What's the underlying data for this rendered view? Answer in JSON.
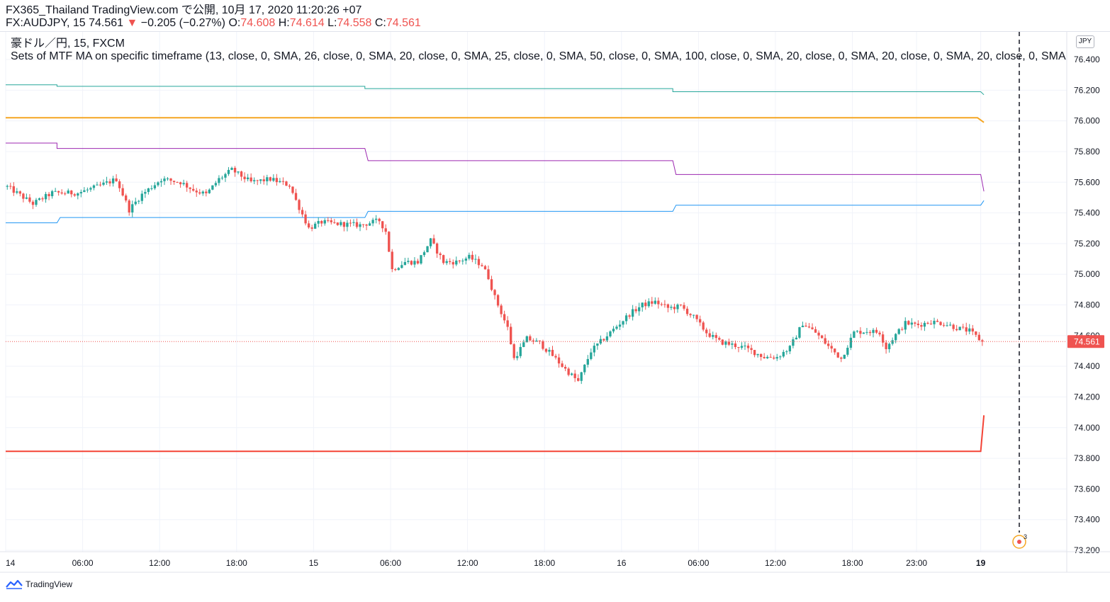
{
  "header": {
    "publisher_line": "FX365_Thailand TradingView.com で公開, 10月 17, 2020 11:20:26 +07",
    "symbol_line": {
      "symbol": "FX:AUDJPY, 15 74.561",
      "arrow": "▼",
      "change": "−0.205 (−0.27%)",
      "o_label": "O:",
      "o_value": "74.608",
      "h_label": "H:",
      "h_value": "74.614",
      "l_label": "L:",
      "l_value": "74.558",
      "c_label": "C:",
      "c_value": "74.561"
    },
    "instrument_line": "豪ドル／円, 15, FXCM",
    "indicator_line": "Sets of MTF MA on specific timeframe (13, close, 0, SMA, 26, close, 0, SMA, 20, close, 0, SMA, 25, close, 0, SMA, 50, close, 0, SMA, 100, close, 0, SMA, 20, close, 0, SMA, 20, close, 0, SMA, 20, close, 0, SMA"
  },
  "currency_badge": "JPY",
  "last_price_label": "74.561",
  "event_count": "3",
  "footer": {
    "brand": "TradingView"
  },
  "colors": {
    "up": "#26a69a",
    "down": "#ef5350",
    "ma_teal": "#26a69a",
    "ma_orange": "#f5a623",
    "ma_purple": "#9c27b0",
    "ma_pink": "#e91e63",
    "ma_blue": "#2196f3",
    "ma_red": "#f44336"
  },
  "chart_data": {
    "type": "candlestick",
    "y_axis": {
      "ticks": [
        "76.400",
        "76.200",
        "76.000",
        "75.800",
        "75.600",
        "75.400",
        "75.200",
        "75.000",
        "74.800",
        "74.600",
        "74.400",
        "74.200",
        "74.000",
        "73.800",
        "73.600",
        "73.400",
        "73.200"
      ],
      "ylim": [
        73.2,
        76.4
      ]
    },
    "x_axis": {
      "ticks": [
        {
          "label": "14",
          "bold": false,
          "bar": 0
        },
        {
          "label": "06:00",
          "bold": false,
          "bar": 24
        },
        {
          "label": "12:00",
          "bold": false,
          "bar": 48
        },
        {
          "label": "18:00",
          "bold": false,
          "bar": 72
        },
        {
          "label": "15",
          "bold": false,
          "bar": 96
        },
        {
          "label": "06:00",
          "bold": false,
          "bar": 120
        },
        {
          "label": "12:00",
          "bold": false,
          "bar": 144
        },
        {
          "label": "18:00",
          "bold": false,
          "bar": 168
        },
        {
          "label": "16",
          "bold": false,
          "bar": 192
        },
        {
          "label": "06:00",
          "bold": false,
          "bar": 216
        },
        {
          "label": "12:00",
          "bold": false,
          "bar": 240
        },
        {
          "label": "18:00",
          "bold": false,
          "bar": 264
        },
        {
          "label": "23:00",
          "bold": false,
          "bar": 284
        },
        {
          "label": "19",
          "bold": true,
          "bar": 304
        }
      ]
    },
    "price_path": [
      [
        0,
        75.57
      ],
      [
        8,
        75.46
      ],
      [
        14,
        75.53
      ],
      [
        22,
        75.53
      ],
      [
        28,
        75.57
      ],
      [
        34,
        75.62
      ],
      [
        38,
        75.42
      ],
      [
        42,
        75.52
      ],
      [
        48,
        75.62
      ],
      [
        54,
        75.6
      ],
      [
        58,
        75.55
      ],
      [
        62,
        75.52
      ],
      [
        66,
        75.62
      ],
      [
        70,
        75.68
      ],
      [
        76,
        75.6
      ],
      [
        82,
        75.62
      ],
      [
        88,
        75.58
      ],
      [
        90,
        75.48
      ],
      [
        94,
        75.3
      ],
      [
        98,
        75.34
      ],
      [
        102,
        75.33
      ],
      [
        110,
        75.32
      ],
      [
        116,
        75.35
      ],
      [
        118,
        75.28
      ],
      [
        120,
        75.03
      ],
      [
        124,
        75.08
      ],
      [
        128,
        75.08
      ],
      [
        132,
        75.22
      ],
      [
        136,
        75.08
      ],
      [
        140,
        75.08
      ],
      [
        144,
        75.11
      ],
      [
        148,
        75.06
      ],
      [
        150,
        74.98
      ],
      [
        152,
        74.85
      ],
      [
        156,
        74.65
      ],
      [
        158,
        74.45
      ],
      [
        162,
        74.58
      ],
      [
        166,
        74.55
      ],
      [
        170,
        74.47
      ],
      [
        174,
        74.38
      ],
      [
        178,
        74.3
      ],
      [
        182,
        74.5
      ],
      [
        186,
        74.58
      ],
      [
        190,
        74.66
      ],
      [
        194,
        74.74
      ],
      [
        198,
        74.8
      ],
      [
        202,
        74.82
      ],
      [
        206,
        74.78
      ],
      [
        210,
        74.79
      ],
      [
        214,
        74.72
      ],
      [
        218,
        74.62
      ],
      [
        222,
        74.56
      ],
      [
        226,
        74.54
      ],
      [
        230,
        74.52
      ],
      [
        236,
        74.46
      ],
      [
        240,
        74.46
      ],
      [
        244,
        74.52
      ],
      [
        248,
        74.68
      ],
      [
        252,
        74.62
      ],
      [
        256,
        74.53
      ],
      [
        260,
        74.45
      ],
      [
        264,
        74.62
      ],
      [
        268,
        74.63
      ],
      [
        272,
        74.62
      ],
      [
        274,
        74.52
      ],
      [
        276,
        74.58
      ],
      [
        280,
        74.68
      ],
      [
        284,
        74.67
      ],
      [
        288,
        74.69
      ],
      [
        292,
        74.68
      ],
      [
        296,
        74.65
      ],
      [
        300,
        74.63
      ],
      [
        304,
        74.56
      ]
    ],
    "moving_averages": [
      {
        "color": "ma_teal",
        "width": 1,
        "points": [
          [
            0,
            76.235
          ],
          [
            16,
            76.235
          ],
          [
            16,
            76.225
          ],
          [
            112,
            76.225
          ],
          [
            112,
            76.21
          ],
          [
            208,
            76.21
          ],
          [
            208,
            76.19
          ],
          [
            304,
            76.19
          ],
          [
            305,
            76.17
          ]
        ]
      },
      {
        "color": "ma_orange",
        "width": 2,
        "points": [
          [
            0,
            76.02
          ],
          [
            303,
            76.02
          ],
          [
            305,
            75.99
          ]
        ]
      },
      {
        "color": "ma_purple",
        "width": 1,
        "points": [
          [
            0,
            75.855
          ],
          [
            16,
            75.855
          ],
          [
            16,
            75.82
          ],
          [
            112,
            75.82
          ],
          [
            113,
            75.74
          ],
          [
            208,
            75.74
          ],
          [
            209,
            75.65
          ],
          [
            304,
            75.65
          ],
          [
            305,
            75.54
          ]
        ]
      },
      {
        "color": "ma_blue",
        "width": 1,
        "points": [
          [
            0,
            75.335
          ],
          [
            16,
            75.335
          ],
          [
            17,
            75.37
          ],
          [
            112,
            75.37
          ],
          [
            113,
            75.41
          ],
          [
            208,
            75.41
          ],
          [
            209,
            75.45
          ],
          [
            304,
            75.45
          ],
          [
            305,
            75.48
          ]
        ]
      },
      {
        "color": "ma_red",
        "width": 2,
        "points": [
          [
            0,
            73.845
          ],
          [
            304,
            73.845
          ],
          [
            305,
            74.08
          ]
        ]
      }
    ],
    "last_price": 74.561,
    "bar_count": 305
  }
}
